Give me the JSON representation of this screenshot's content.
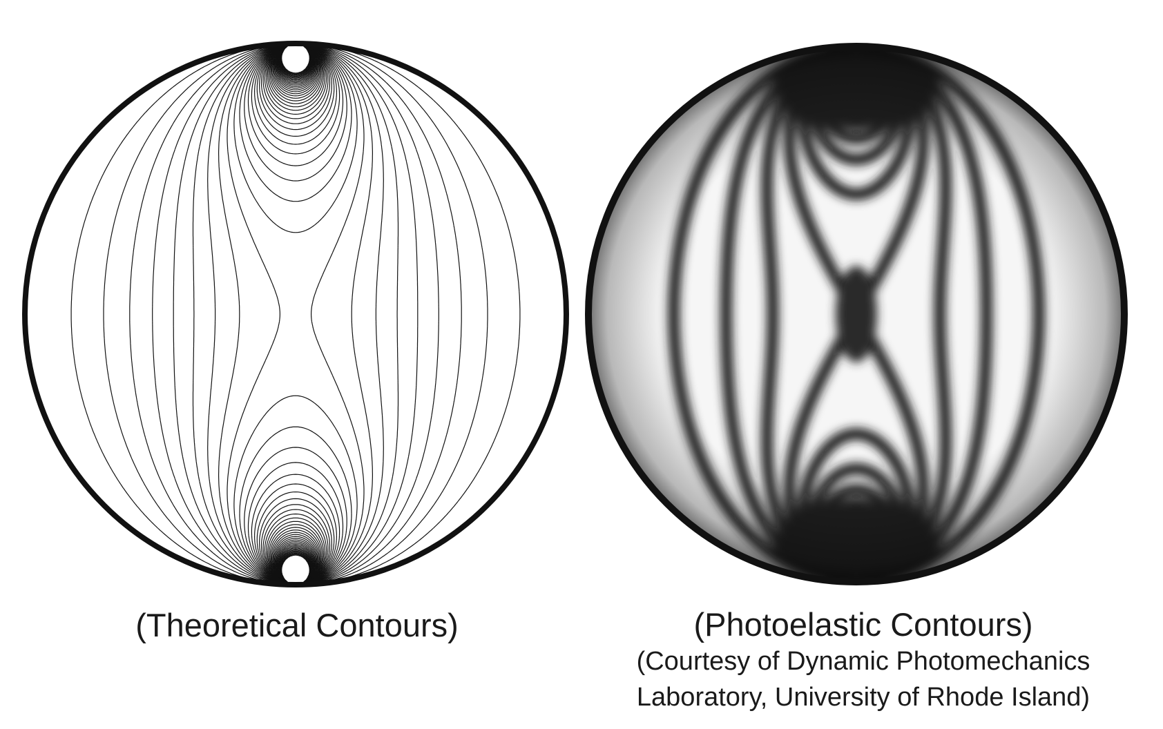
{
  "panels": [
    {
      "caption": "(Theoretical Contours)",
      "kind": "line-contours"
    },
    {
      "caption": "(Photoelastic Contours)",
      "credit_line1": "(Courtesy of Dynamic Photomechanics",
      "credit_line2": "Laboratory, University of Rhode Island)",
      "kind": "fringe-photograph"
    }
  ],
  "colors": {
    "ink": "#111111",
    "background": "#ffffff",
    "fringe_dark": "#1c1c1c",
    "fringe_light": "#f6f6f6"
  }
}
